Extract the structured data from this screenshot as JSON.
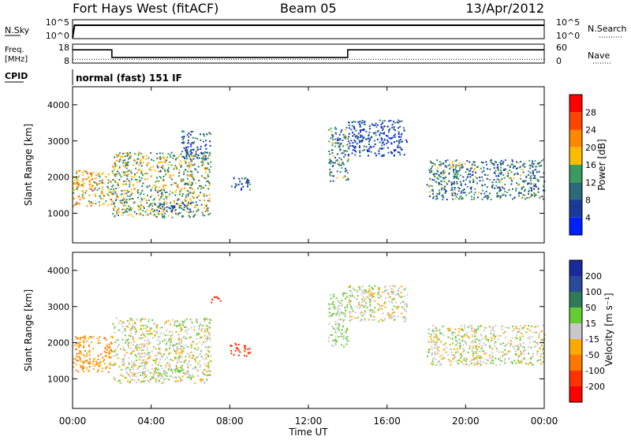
{
  "header": {
    "station": "Fort Hays West (fitACF)",
    "beam": "Beam 05",
    "date": "13/Apr/2012"
  },
  "noise_panel": {
    "left_label": "N.Sky",
    "right_label": "N.Search",
    "ticks_left": [
      "10^5",
      "10^0"
    ],
    "ticks_right": [
      "10^5",
      "10^0"
    ]
  },
  "freq_panel": {
    "left_label_1": "Freq.",
    "left_label_2": "[MHz]",
    "ticks_left": [
      "18",
      "8"
    ],
    "ticks_right": [
      "60",
      "0"
    ],
    "right_label": "Nave"
  },
  "cpid": {
    "label": "CPID",
    "value": "normal (fast) 151 IF"
  },
  "axes": {
    "ylabel": "Slant Range [km]",
    "yticks": [
      "4000",
      "3000",
      "2000",
      "1000"
    ],
    "xticks": [
      "00:00",
      "04:00",
      "08:00",
      "12:00",
      "16:00",
      "20:00",
      "00:00"
    ],
    "xlabel": "Time UT"
  },
  "colorbars": {
    "power": {
      "label": "Power [dB]",
      "ticks": [
        "28",
        "24",
        "20",
        "16",
        "12",
        "8",
        "4"
      ],
      "colors": [
        "#ff0000",
        "#ff4400",
        "#ff8800",
        "#ffbb00",
        "#3a9a60",
        "#2a6a7a",
        "#1a3a9a",
        "#0020ff"
      ]
    },
    "velocity": {
      "label": "Velocity [m s⁻¹]",
      "ticks": [
        "200",
        "100",
        "50",
        "15",
        "-15",
        "-50",
        "-100",
        "-200"
      ],
      "colors": [
        "#1a2a9a",
        "#2a4a9a",
        "#2e7b55",
        "#66cc33",
        "#c8c8c8",
        "#ffaa00",
        "#ff7700",
        "#ff3300",
        "#ff0000"
      ]
    }
  },
  "chart_data": [
    {
      "type": "line",
      "title": "",
      "xlabel": "",
      "ylabel": "N.Sky",
      "x_range_hours": [
        0,
        24
      ],
      "ylim": [
        "10^0",
        "10^5"
      ],
      "series": [
        {
          "name": "N.Sky",
          "x": [
            0,
            0.1,
            24
          ],
          "values": [
            "10^0",
            "10^4",
            "10^4"
          ]
        }
      ]
    },
    {
      "type": "line",
      "title": "",
      "xlabel": "",
      "ylabel": "Freq. [MHz]",
      "x_range_hours": [
        0,
        24
      ],
      "ylim": [
        8,
        18
      ],
      "series": [
        {
          "name": "Freq. [MHz]",
          "x": [
            0,
            2,
            2,
            14,
            14,
            24
          ],
          "values": [
            15,
            15,
            11,
            11,
            15,
            15
          ]
        },
        {
          "name": "Nave",
          "x": [
            0,
            24
          ],
          "values": [
            10,
            10
          ]
        }
      ]
    },
    {
      "type": "heatmap",
      "title": "",
      "xlabel": "Time UT",
      "ylabel": "Slant Range [km]",
      "x_range_hours": [
        0,
        24
      ],
      "ylim": [
        180,
        4500
      ],
      "colorbar": "Power [dB]",
      "clim": [
        0,
        30
      ],
      "regions": [
        {
          "t": [
            0,
            2
          ],
          "r": [
            1200,
            2200
          ],
          "power": 18
        },
        {
          "t": [
            2,
            7
          ],
          "r": [
            900,
            2700
          ],
          "power": 14
        },
        {
          "t": [
            4,
            6
          ],
          "r": [
            1050,
            1300
          ],
          "power": 8
        },
        {
          "t": [
            5.5,
            7
          ],
          "r": [
            2500,
            3300
          ],
          "power": 8
        },
        {
          "t": [
            8,
            9
          ],
          "r": [
            1650,
            2000
          ],
          "power": 6
        },
        {
          "t": [
            13,
            14
          ],
          "r": [
            1900,
            3400
          ],
          "power": 10
        },
        {
          "t": [
            14,
            17
          ],
          "r": [
            2600,
            3600
          ],
          "power": 6
        },
        {
          "t": [
            18,
            24
          ],
          "r": [
            1400,
            2500
          ],
          "power": 10
        }
      ]
    },
    {
      "type": "heatmap",
      "title": "",
      "xlabel": "Time UT",
      "ylabel": "Slant Range [km]",
      "x_range_hours": [
        0,
        24
      ],
      "ylim": [
        180,
        4500
      ],
      "colorbar": "Velocity [m s⁻¹]",
      "clim": [
        -200,
        200
      ],
      "regions": [
        {
          "t": [
            0,
            2
          ],
          "r": [
            1200,
            2200
          ],
          "velocity": -50
        },
        {
          "t": [
            2,
            7
          ],
          "r": [
            900,
            2700
          ],
          "velocity": 0
        },
        {
          "t": [
            4,
            6
          ],
          "r": [
            1050,
            1300
          ],
          "velocity": 15
        },
        {
          "t": [
            7,
            7.5
          ],
          "r": [
            3100,
            3300
          ],
          "velocity": -200
        },
        {
          "t": [
            8,
            9
          ],
          "r": [
            1650,
            2000
          ],
          "velocity": -150
        },
        {
          "t": [
            13,
            14
          ],
          "r": [
            1900,
            3400
          ],
          "velocity": 15
        },
        {
          "t": [
            14,
            17
          ],
          "r": [
            2600,
            3600
          ],
          "velocity": 0
        },
        {
          "t": [
            18,
            24
          ],
          "r": [
            1400,
            2500
          ],
          "velocity": 0
        }
      ]
    }
  ]
}
